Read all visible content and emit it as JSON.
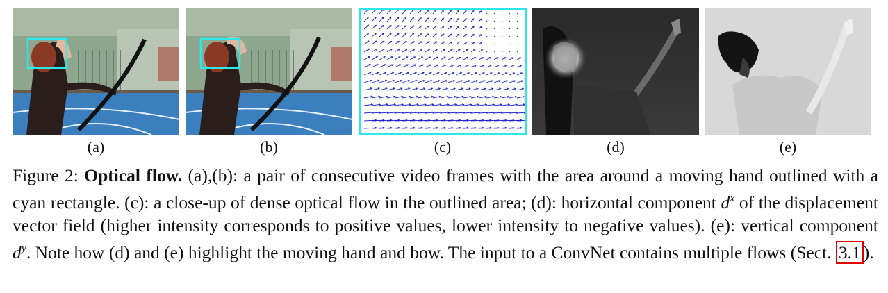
{
  "figure": {
    "panels": [
      {
        "label": "(a)",
        "kind": "video-frame"
      },
      {
        "label": "(b)",
        "kind": "video-frame"
      },
      {
        "label": "(c)",
        "kind": "flow-vectors"
      },
      {
        "label": "(d)",
        "kind": "flow-horizontal"
      },
      {
        "label": "(e)",
        "kind": "flow-vertical"
      }
    ],
    "colors": {
      "outline": "#2ee8e8",
      "flow_arrows": "#2020d8",
      "ref_box": "#e00000"
    }
  },
  "caption": {
    "prefix": "Figure 2: ",
    "title": "Optical flow.",
    "text_1": " (a),(b): a pair of consecutive video frames with the area around a moving hand outlined with a cyan rectangle. (c): a close-up of dense optical flow in the outlined area; (d): horizontal component ",
    "math_dx_base": "d",
    "math_dx_sup": "x",
    "text_2": " of the displacement vector field (higher intensity corresponds to positive values, lower intensity to negative values). (e): vertical component ",
    "math_dy_base": "d",
    "math_dy_sup": "y",
    "text_3": ". Note how (d) and (e) highlight the moving hand and bow. The input to a ConvNet contains multiple flows (Sect. ",
    "ref": "3.1",
    "text_4": ")."
  }
}
